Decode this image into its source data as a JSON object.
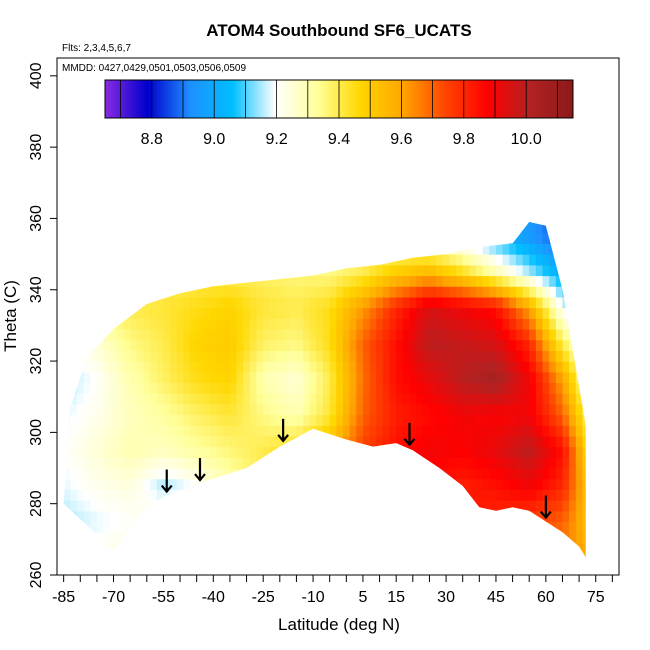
{
  "chart_data": {
    "type": "heatmap",
    "title": "ATOM4 Southbound SF6_UCATS",
    "flights_note": "Flts: 2,3,4,5,6,7",
    "dates_note": "MMDD: 0427,0429,0501,0503,0506,0509",
    "xlabel": "Latitude (deg N)",
    "ylabel": "Theta (C)",
    "xlim": [
      -87,
      82
    ],
    "ylim": [
      260,
      405
    ],
    "x_tick_labels": [
      "-85",
      "-70",
      "-55",
      "-40",
      "-25",
      "-10",
      "5",
      "15",
      "30",
      "45",
      "60",
      "75"
    ],
    "y_tick_labels": [
      "260",
      "280",
      "300",
      "320",
      "340",
      "360",
      "380",
      "400"
    ],
    "colorbar": {
      "range": [
        8.65,
        10.15
      ],
      "tick_labels": [
        "8.8",
        "9.0",
        "9.2",
        "9.4",
        "9.6",
        "9.8",
        "10.0"
      ],
      "colors": [
        "#8a2be2",
        "#0000cd",
        "#1e90ff",
        "#00bfff",
        "#ffffff",
        "#ffff99",
        "#ffd700",
        "#ffa500",
        "#ff4500",
        "#ff0000",
        "#b22222",
        "#8b1a1a"
      ]
    },
    "arrows_lat": [
      -54,
      -44,
      -19,
      19,
      60
    ],
    "lower_boundary": {
      "lat": [
        -70,
        -62,
        -55,
        -48,
        -40,
        -30,
        -20,
        -10,
        0,
        8,
        15,
        20,
        28,
        35,
        40,
        45,
        50,
        55,
        60,
        65,
        70,
        72
      ],
      "theta": [
        267,
        277,
        282,
        284,
        287,
        290,
        296,
        301,
        298,
        296,
        297,
        295,
        290,
        285,
        279,
        278,
        279,
        278,
        275,
        272,
        268,
        265
      ]
    },
    "upper_boundary": {
      "lat": [
        -83,
        -78,
        -70,
        -60,
        -50,
        -40,
        -30,
        -20,
        -10,
        0,
        10,
        20,
        30,
        40,
        50,
        55,
        60,
        65,
        72
      ],
      "theta": [
        307,
        321,
        329,
        336,
        339,
        341,
        342,
        343,
        344,
        346,
        347,
        349,
        350,
        352,
        353,
        359,
        358,
        340,
        302
      ]
    },
    "field": {
      "lats": [
        -85,
        -75,
        -65,
        -55,
        -45,
        -35,
        -25,
        -15,
        -5,
        5,
        15,
        25,
        35,
        45,
        55,
        65,
        72
      ],
      "thetas": [
        265,
        275,
        285,
        295,
        305,
        315,
        325,
        335,
        345,
        355
      ],
      "values": [
        [
          9.2,
          9.22,
          9.25,
          9.26,
          9.3,
          9.35,
          9.4,
          9.5,
          9.6,
          9.8,
          9.95,
          9.9,
          9.8,
          9.75,
          9.7,
          9.65,
          9.6
        ],
        [
          9.15,
          9.18,
          9.2,
          9.25,
          9.3,
          9.35,
          9.42,
          9.5,
          9.62,
          9.82,
          9.92,
          9.88,
          9.85,
          9.8,
          9.75,
          9.7,
          9.55
        ],
        [
          9.18,
          9.22,
          9.24,
          9.15,
          9.2,
          9.3,
          9.4,
          9.48,
          9.6,
          9.78,
          9.9,
          9.85,
          9.82,
          9.85,
          9.9,
          9.8,
          9.55
        ],
        [
          9.2,
          9.25,
          9.3,
          9.28,
          9.32,
          9.36,
          9.4,
          9.45,
          9.55,
          9.75,
          9.85,
          9.9,
          9.88,
          9.92,
          10.0,
          9.85,
          9.5
        ],
        [
          9.18,
          9.22,
          9.28,
          9.32,
          9.38,
          9.42,
          9.35,
          9.3,
          9.42,
          9.7,
          9.82,
          9.86,
          9.9,
          9.88,
          9.9,
          9.7,
          9.4
        ],
        [
          9.15,
          9.2,
          9.3,
          9.38,
          9.45,
          9.48,
          9.3,
          9.25,
          9.4,
          9.68,
          9.85,
          9.92,
          10.0,
          10.05,
          9.9,
          9.6,
          9.3
        ],
        [
          9.2,
          9.25,
          9.35,
          9.4,
          9.48,
          9.5,
          9.38,
          9.35,
          9.45,
          9.7,
          9.85,
          10.0,
          9.98,
          9.95,
          9.8,
          9.4,
          9.2
        ],
        [
          9.3,
          9.35,
          9.4,
          9.42,
          9.45,
          9.48,
          9.42,
          9.4,
          9.45,
          9.62,
          9.8,
          9.95,
          9.9,
          9.85,
          9.6,
          9.2,
          9.05
        ],
        [
          9.3,
          9.32,
          9.35,
          9.38,
          9.4,
          9.4,
          9.38,
          9.36,
          9.35,
          9.4,
          9.5,
          9.55,
          9.45,
          9.3,
          9.15,
          9.0,
          8.95
        ],
        [
          9.3,
          9.32,
          9.35,
          9.38,
          9.4,
          9.4,
          9.38,
          9.36,
          9.3,
          9.3,
          9.28,
          9.25,
          9.15,
          9.05,
          8.95,
          8.85,
          8.8
        ]
      ]
    }
  }
}
